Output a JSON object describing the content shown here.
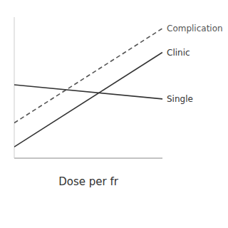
{
  "chart_data": {
    "type": "line",
    "title": "",
    "xlabel": "Dose per fr",
    "x": [
      0.0,
      1.0
    ],
    "series": [
      {
        "name": "Complication",
        "color": "#555555",
        "line_style": "dashed",
        "values": [
          0.25,
          0.92
        ]
      },
      {
        "name": "Clinic",
        "color": "#333333",
        "line_style": "solid",
        "values": [
          0.08,
          0.75
        ]
      },
      {
        "name": "Single",
        "color": "#333333",
        "line_style": "solid",
        "values": [
          0.52,
          0.42
        ]
      }
    ],
    "xlim": [
      0.0,
      1.0
    ],
    "ylim": [
      0.0,
      1.0
    ],
    "tick_labels": false,
    "grid": false
  }
}
